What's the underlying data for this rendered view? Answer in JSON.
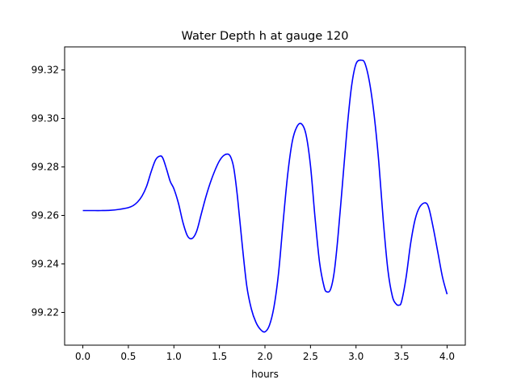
{
  "chart_data": {
    "type": "line",
    "title": "Water Depth h at gauge 120",
    "xlabel": "hours",
    "ylabel": "",
    "xlim": [
      -0.2,
      4.2
    ],
    "ylim": [
      99.2065,
      99.3295
    ],
    "xticks": [
      0.0,
      0.5,
      1.0,
      1.5,
      2.0,
      2.5,
      3.0,
      3.5,
      4.0
    ],
    "xtick_labels": [
      "0.0",
      "0.5",
      "1.0",
      "1.5",
      "2.0",
      "2.5",
      "3.0",
      "3.5",
      "4.0"
    ],
    "yticks": [
      99.22,
      99.24,
      99.26,
      99.28,
      99.3,
      99.32
    ],
    "ytick_labels": [
      "99.22",
      "99.24",
      "99.26",
      "99.28",
      "99.30",
      "99.32"
    ],
    "grid": false,
    "legend": "none",
    "series": [
      {
        "color": "#0000ff",
        "x": [
          0.0,
          0.1,
          0.2,
          0.3,
          0.4,
          0.5,
          0.55,
          0.6,
          0.65,
          0.7,
          0.75,
          0.8,
          0.85,
          0.88,
          0.92,
          0.96,
          1.0,
          1.05,
          1.1,
          1.15,
          1.2,
          1.25,
          1.3,
          1.35,
          1.4,
          1.45,
          1.5,
          1.55,
          1.6,
          1.63,
          1.66,
          1.7,
          1.75,
          1.8,
          1.85,
          1.9,
          1.95,
          2.0,
          2.05,
          2.1,
          2.15,
          2.2,
          2.25,
          2.3,
          2.35,
          2.4,
          2.45,
          2.5,
          2.55,
          2.6,
          2.65,
          2.68,
          2.72,
          2.76,
          2.8,
          2.85,
          2.9,
          2.95,
          3.0,
          3.06,
          3.1,
          3.15,
          3.2,
          3.25,
          3.3,
          3.35,
          3.4,
          3.44,
          3.47,
          3.5,
          3.55,
          3.6,
          3.65,
          3.7,
          3.76,
          3.8,
          3.85,
          3.9,
          3.95,
          4.0
        ],
        "y": [
          99.262,
          99.262,
          99.262,
          99.2621,
          99.2625,
          99.2632,
          99.264,
          99.2655,
          99.268,
          99.272,
          99.278,
          99.283,
          99.2845,
          99.2835,
          99.279,
          99.274,
          99.271,
          99.265,
          99.257,
          99.2515,
          99.2505,
          99.2535,
          99.2605,
          99.2675,
          99.2735,
          99.2785,
          99.2825,
          99.2848,
          99.2852,
          99.2835,
          99.279,
          99.267,
          99.248,
          99.231,
          99.2215,
          99.216,
          99.213,
          99.212,
          99.2148,
          99.2225,
          99.2365,
          99.2575,
          99.277,
          99.2905,
          99.2965,
          99.2978,
          99.2935,
          99.2805,
          99.259,
          99.2405,
          99.2305,
          99.2285,
          99.2295,
          99.2365,
          99.2505,
          99.2725,
          99.295,
          99.313,
          99.3225,
          99.324,
          99.3225,
          99.3145,
          99.301,
          99.282,
          99.2575,
          99.2375,
          99.2265,
          99.2235,
          99.223,
          99.2245,
          99.2345,
          99.2485,
          99.2585,
          99.2635,
          99.2652,
          99.263,
          99.2545,
          99.2445,
          99.2345,
          99.2275
        ]
      }
    ]
  }
}
